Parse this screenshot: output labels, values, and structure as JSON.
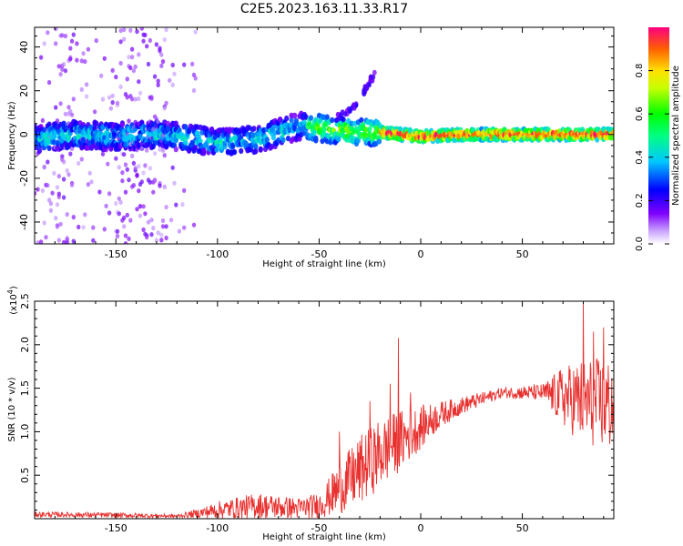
{
  "title": "C2E5.2023.163.11.33.R17",
  "chart_data": [
    {
      "type": "heatmap",
      "xlabel": "Height of straight line (km)",
      "ylabel": "Frequency (Hz)",
      "xlim": [
        -190,
        95
      ],
      "ylim": [
        -50,
        49
      ],
      "xticks": [
        -150,
        -100,
        -50,
        0,
        50
      ],
      "yticks": [
        -40,
        -20,
        0,
        20,
        40
      ],
      "colorbar": {
        "label": "Normalized spectral amplitude",
        "range": [
          0,
          1
        ],
        "ticks": [
          "0.0",
          "0.2",
          "0.4",
          "0.6",
          "0.8"
        ],
        "colormap": "rainbow"
      },
      "ridge": [
        {
          "x": -190,
          "y": -2
        },
        {
          "x": -170,
          "y": 0
        },
        {
          "x": -150,
          "y": -1
        },
        {
          "x": -130,
          "y": 0
        },
        {
          "x": -110,
          "y": -2
        },
        {
          "x": -100,
          "y": -4
        },
        {
          "x": -90,
          "y": -3
        },
        {
          "x": -80,
          "y": -2
        },
        {
          "x": -70,
          "y": 1
        },
        {
          "x": -60,
          "y": 4
        },
        {
          "x": -50,
          "y": 3
        },
        {
          "x": -40,
          "y": 2
        },
        {
          "x": -30,
          "y": 1
        },
        {
          "x": -20,
          "y": 1
        },
        {
          "x": -10,
          "y": 0
        },
        {
          "x": 0,
          "y": -1
        },
        {
          "x": 20,
          "y": 0
        },
        {
          "x": 50,
          "y": 0
        },
        {
          "x": 95,
          "y": 0
        }
      ],
      "branch": [
        {
          "x": -40,
          "y": 8
        },
        {
          "x": -30,
          "y": 14
        },
        {
          "x": -27,
          "y": 22
        },
        {
          "x": -22,
          "y": 28
        }
      ]
    },
    {
      "type": "line",
      "xlabel": "Height of straight line (km)",
      "ylabel": "SNR (10 * v/v)",
      "yscale_label": "(x10",
      "yscale_exp": "4",
      "xlim": [
        -190,
        95
      ],
      "ylim": [
        0,
        2.5
      ],
      "xticks": [
        -150,
        -100,
        -50,
        0,
        50
      ],
      "yticks": [
        "0.5",
        "1.0",
        "1.5",
        "2.0",
        "2.5"
      ],
      "color": "#e8312f",
      "envelope": [
        {
          "x": -190,
          "mean": 0.05,
          "amp": 0.03
        },
        {
          "x": -150,
          "mean": 0.04,
          "amp": 0.03
        },
        {
          "x": -120,
          "mean": 0.03,
          "amp": 0.02
        },
        {
          "x": -110,
          "mean": 0.06,
          "amp": 0.05
        },
        {
          "x": -100,
          "mean": 0.1,
          "amp": 0.1
        },
        {
          "x": -80,
          "mean": 0.15,
          "amp": 0.15
        },
        {
          "x": -60,
          "mean": 0.12,
          "amp": 0.12
        },
        {
          "x": -50,
          "mean": 0.15,
          "amp": 0.15
        },
        {
          "x": -40,
          "mean": 0.35,
          "amp": 0.3
        },
        {
          "x": -30,
          "mean": 0.55,
          "amp": 0.4
        },
        {
          "x": -20,
          "mean": 0.75,
          "amp": 0.4
        },
        {
          "x": -10,
          "mean": 0.9,
          "amp": 0.35
        },
        {
          "x": 0,
          "mean": 1.05,
          "amp": 0.25
        },
        {
          "x": 10,
          "mean": 1.2,
          "amp": 0.15
        },
        {
          "x": 20,
          "mean": 1.3,
          "amp": 0.1
        },
        {
          "x": 40,
          "mean": 1.45,
          "amp": 0.06
        },
        {
          "x": 60,
          "mean": 1.45,
          "amp": 0.1
        },
        {
          "x": 70,
          "mean": 1.4,
          "amp": 0.35
        },
        {
          "x": 80,
          "mean": 1.35,
          "amp": 0.5
        },
        {
          "x": 95,
          "mean": 1.3,
          "amp": 0.55
        }
      ],
      "spikes": [
        {
          "x": -11,
          "y": 2.08
        },
        {
          "x": -40,
          "y": 1.0
        },
        {
          "x": -25,
          "y": 1.35
        },
        {
          "x": -15,
          "y": 1.55
        },
        {
          "x": -5,
          "y": 1.45
        },
        {
          "x": 80,
          "y": 2.5
        },
        {
          "x": 85,
          "y": 2.15
        },
        {
          "x": 90,
          "y": 2.2
        }
      ]
    }
  ]
}
